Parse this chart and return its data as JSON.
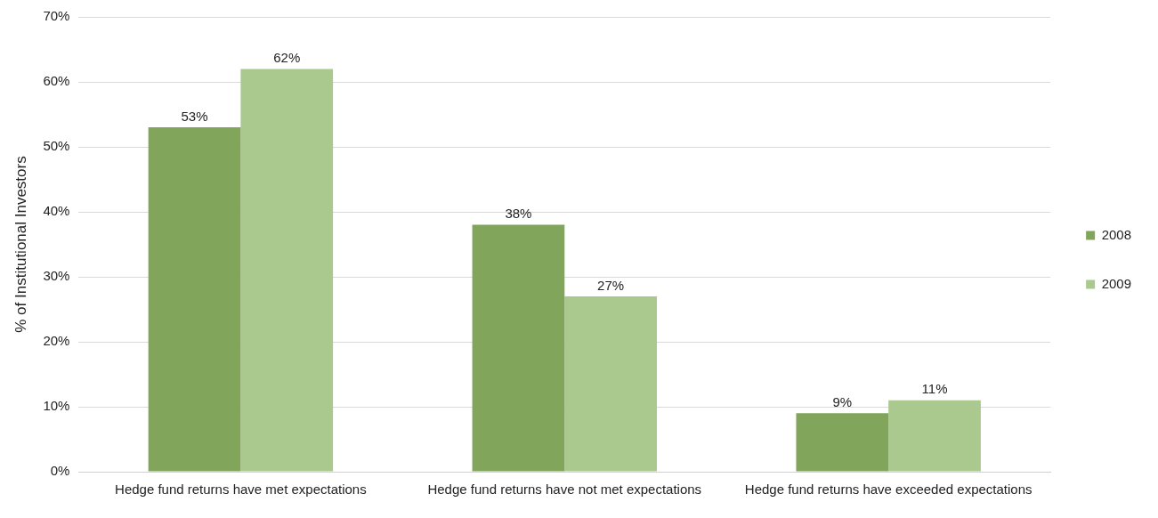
{
  "chart_data": {
    "type": "bar",
    "ylabel": "% of Institutional Investors",
    "categories": [
      "Hedge fund returns have met expectations",
      "Hedge fund returns have not met expectations",
      "Hedge fund returns have exceeded expectations"
    ],
    "series": [
      {
        "name": "2008",
        "color": "#82a55c",
        "values": [
          53,
          38,
          9
        ],
        "value_labels": [
          "53%",
          "38%",
          "9%"
        ]
      },
      {
        "name": "2009",
        "color": "#a9c98e",
        "values": [
          62,
          27,
          11
        ],
        "value_labels": [
          "62%",
          "27%",
          "11%"
        ]
      }
    ],
    "ylim": [
      0,
      70
    ],
    "yticks": [
      {
        "value": 0,
        "label": "0%"
      },
      {
        "value": 10,
        "label": "10%"
      },
      {
        "value": 20,
        "label": "20%"
      },
      {
        "value": 30,
        "label": "30%"
      },
      {
        "value": 40,
        "label": "40%"
      },
      {
        "value": 50,
        "label": "50%"
      },
      {
        "value": 60,
        "label": "60%"
      },
      {
        "value": 70,
        "label": "70%"
      }
    ],
    "grid": "y",
    "legend": "right"
  }
}
